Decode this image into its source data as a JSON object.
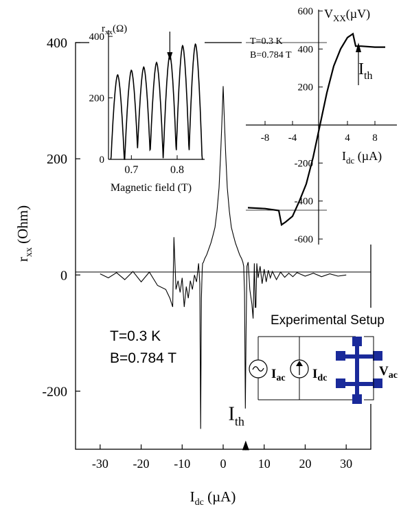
{
  "chart_data": [
    {
      "id": "main",
      "type": "line",
      "xlabel_main": "I",
      "xlabel_sub": "dc",
      "xlabel_unit": " (µA)",
      "ylabel_main": "r",
      "ylabel_sub": "xx",
      "ylabel_unit": " (Ohm)",
      "xlim": [
        -36,
        36
      ],
      "ylim": [
        -300,
        400
      ],
      "xticks": [
        -30,
        -20,
        -10,
        0,
        10,
        20,
        30
      ],
      "xtick_labels": [
        "-30",
        "-20",
        "-10",
        "0",
        "10",
        "20",
        "30"
      ],
      "yticks": [
        -200,
        0,
        200,
        400
      ],
      "ytick_labels": [
        "-200",
        "0",
        "200",
        "400"
      ],
      "annotations": {
        "temperature": "T=0.3 K",
        "field": "B=0.784 T",
        "ith_main": "I",
        "ith_sub": "th",
        "ith_x": 5.5
      },
      "series": [
        {
          "x": [
            -30,
            -28,
            -26,
            -24,
            -22,
            -20,
            -18,
            -16,
            -14,
            -13,
            -12.3,
            -12,
            -11.5,
            -11,
            -10.5,
            -10,
            -9.5,
            -9,
            -8.5,
            -8,
            -7.5,
            -7,
            -6.5,
            -6,
            -5.7,
            -5.5,
            -5.3,
            -5.1,
            -5,
            -4.8,
            -4.5,
            -4,
            -3.5,
            -3,
            -2.5,
            -2,
            -1.5,
            -1,
            -0.6,
            -0.3,
            0,
            0.3,
            0.6,
            1,
            1.5,
            2,
            2.5,
            3,
            3.5,
            4,
            4.5,
            4.8,
            5,
            5.2,
            5.4,
            5.6,
            5.8,
            6.1,
            6.5,
            7,
            7.3,
            7.6,
            7.9,
            8.2,
            8.5,
            9,
            9.5,
            10,
            10.5,
            11,
            11.5,
            12,
            13,
            14,
            15,
            16,
            17,
            18,
            20,
            22,
            24,
            26,
            28,
            30
          ],
          "y": [
            2,
            -5,
            4,
            -8,
            6,
            -12,
            5,
            -18,
            -25,
            -40,
            -55,
            65,
            -25,
            -10,
            -30,
            -5,
            -55,
            -20,
            -40,
            -10,
            -25,
            0,
            -12,
            20,
            -15,
            -265,
            -40,
            10,
            20,
            22,
            28,
            35,
            45,
            55,
            68,
            82,
            110,
            150,
            210,
            265,
            325,
            265,
            210,
            150,
            110,
            82,
            68,
            55,
            45,
            35,
            28,
            22,
            15,
            -30,
            -230,
            -95,
            15,
            22,
            -25,
            -50,
            -75,
            20,
            -80,
            20,
            -5,
            15,
            -15,
            10,
            -12,
            8,
            -5,
            6,
            -8,
            5,
            -4,
            3,
            -3,
            4,
            -2,
            3,
            -3,
            2,
            -2,
            0
          ]
        }
      ]
    },
    {
      "id": "inset_rxx",
      "type": "line",
      "ylabel_main": "r",
      "ylabel_sub": "xx",
      "ylabel_unit": "(Ω)",
      "xlabel": "Magnetic field (T)",
      "xlim": [
        0.65,
        0.86
      ],
      "ylim": [
        0,
        420
      ],
      "xticks": [
        0.7,
        0.8
      ],
      "xtick_labels": [
        "0.7",
        "0.8"
      ],
      "yticks": [
        0,
        200,
        400
      ],
      "ytick_labels": [
        "0",
        "200",
        "400"
      ],
      "arrow_at_field": 0.784,
      "series": [
        {
          "peaks": [
            0.67,
            0.7,
            0.727,
            0.755,
            0.784,
            0.812,
            0.84
          ],
          "peak_values": [
            275,
            290,
            300,
            315,
            340,
            370,
            375
          ]
        }
      ]
    },
    {
      "id": "inset_vxx",
      "type": "line",
      "ylabel_main": "V",
      "ylabel_sub": "XX",
      "ylabel_unit": "(µV)",
      "xlabel_main": "I",
      "xlabel_sub": "dc",
      "xlabel_unit": " (µA)",
      "xlim": [
        -11,
        11
      ],
      "ylim": [
        -640,
        600
      ],
      "xticks": [
        -8,
        -4,
        4,
        8
      ],
      "xtick_labels": [
        "-8",
        "-4",
        "4",
        "8"
      ],
      "yticks": [
        -600,
        -400,
        -200,
        200,
        400,
        600
      ],
      "ytick_labels": [
        "-600",
        "-400",
        "-200",
        "200",
        "400",
        "600"
      ],
      "temperature": "T=0.3 K",
      "field": "B=0.784 T",
      "ith_main": "I",
      "ith_sub": "th",
      "ith_x": 4.8,
      "series": [
        {
          "x": [
            -10.5,
            -8,
            -6,
            -5.6,
            -5,
            -4,
            -3,
            -2,
            -1,
            0,
            1,
            2,
            3,
            4,
            4.8,
            5.2,
            6,
            8,
            9.5
          ],
          "y": [
            -435,
            -440,
            -450,
            -525,
            -510,
            -480,
            -400,
            -310,
            -170,
            0,
            170,
            310,
            400,
            460,
            480,
            415,
            415,
            410,
            410
          ]
        }
      ]
    }
  ],
  "setup": {
    "title": "Experimental Setup",
    "iac_main": "I",
    "iac_sub": "ac",
    "idc_main": "I",
    "idc_sub": "dc",
    "vac_main": "V",
    "vac_sub": "ac",
    "color": "#1a2a9a"
  }
}
